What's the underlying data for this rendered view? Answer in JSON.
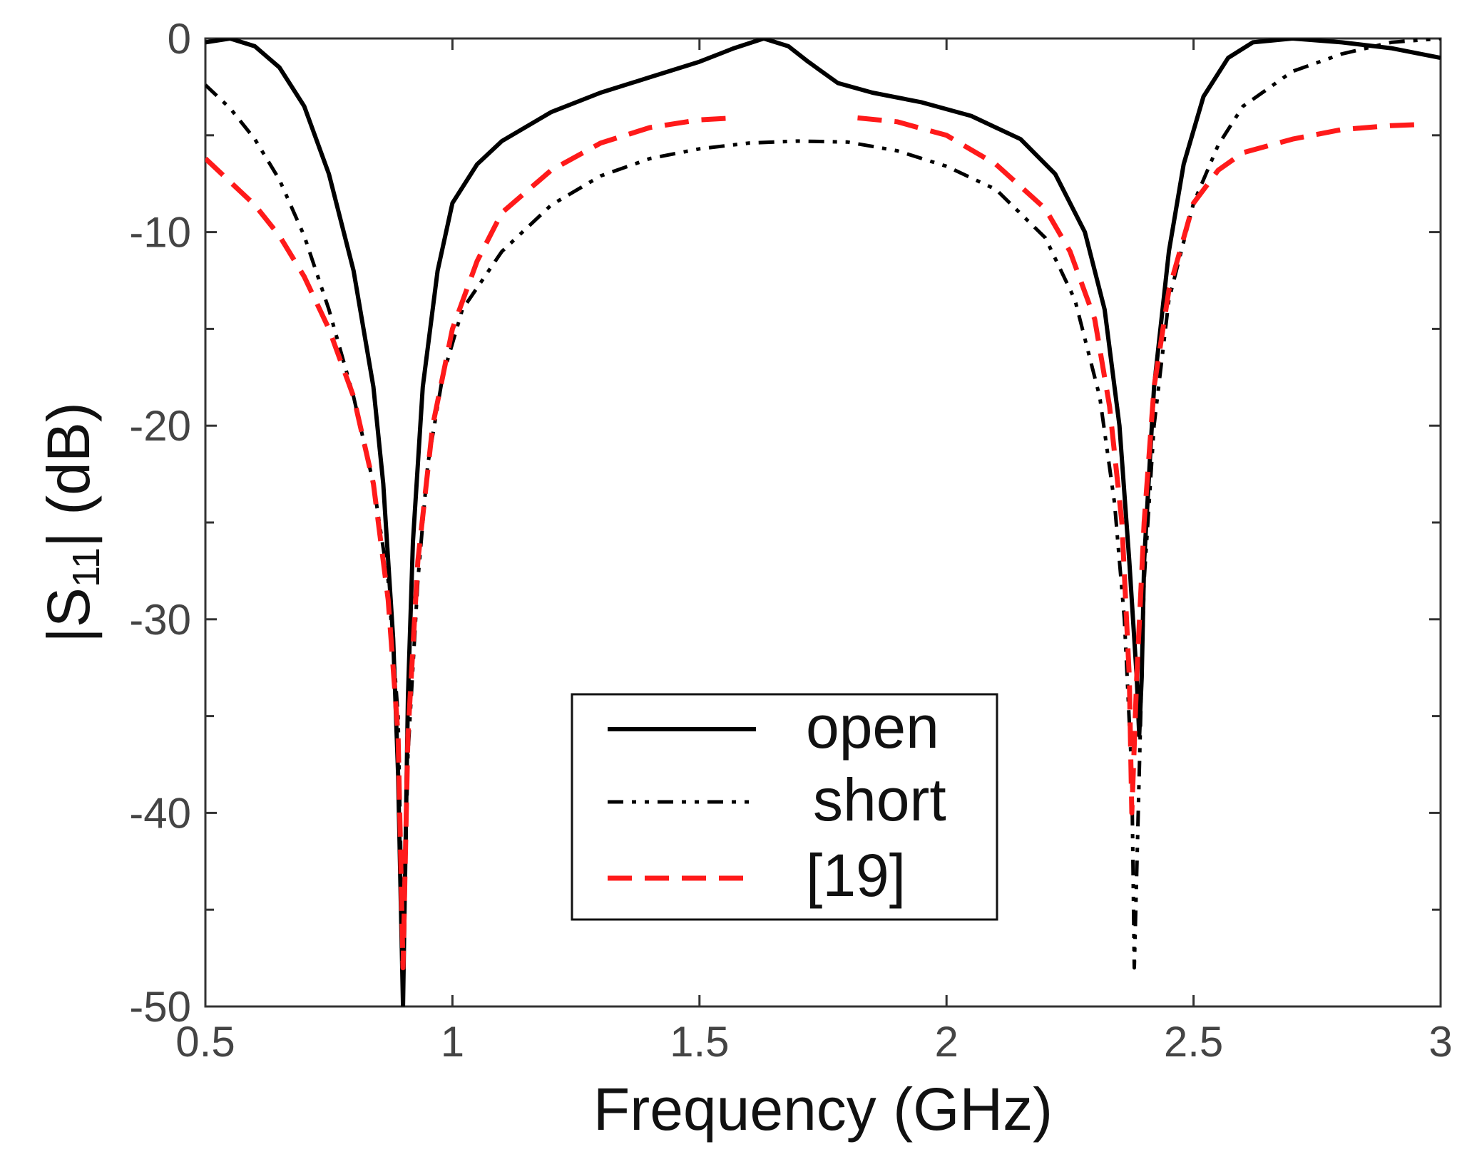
{
  "chart_data": {
    "type": "line",
    "xlabel": "Frequency  (GHz)",
    "ylabel": {
      "prefix": "|S",
      "sub": "11",
      "suffix": "|  (dB)"
    },
    "xlim": [
      0.5,
      3
    ],
    "ylim": [
      -50,
      0
    ],
    "xticks": [
      0.5,
      1,
      1.5,
      2,
      2.5,
      3
    ],
    "xtick_labels": [
      "0.5",
      "1",
      "1.5",
      "2",
      "2.5",
      "3"
    ],
    "yticks": [
      0,
      -10,
      -20,
      -30,
      -40,
      -50
    ],
    "ytick_labels": [
      "0",
      "-10",
      "-20",
      "-30",
      "-40",
      "-50"
    ],
    "yminor_ticks": [
      -5,
      -15,
      -25,
      -35,
      -45
    ],
    "legend_position": "bottom-center",
    "series": [
      {
        "name": "open",
        "color": "#000000",
        "dash": "solid",
        "points": [
          [
            0.5,
            -0.2
          ],
          [
            0.55,
            0.0
          ],
          [
            0.6,
            -0.4
          ],
          [
            0.65,
            -1.5
          ],
          [
            0.7,
            -3.5
          ],
          [
            0.75,
            -7.0
          ],
          [
            0.8,
            -12.0
          ],
          [
            0.84,
            -18.0
          ],
          [
            0.86,
            -23.0
          ],
          [
            0.88,
            -31.0
          ],
          [
            0.89,
            -38.0
          ],
          [
            0.9,
            -50.0
          ],
          [
            0.91,
            -34.0
          ],
          [
            0.92,
            -26.0
          ],
          [
            0.94,
            -18.0
          ],
          [
            0.97,
            -12.0
          ],
          [
            1.0,
            -8.5
          ],
          [
            1.05,
            -6.5
          ],
          [
            1.1,
            -5.3
          ],
          [
            1.2,
            -3.8
          ],
          [
            1.3,
            -2.8
          ],
          [
            1.4,
            -2.0
          ],
          [
            1.5,
            -1.2
          ],
          [
            1.57,
            -0.5
          ],
          [
            1.63,
            0.0
          ],
          [
            1.68,
            -0.4
          ],
          [
            1.72,
            -1.2
          ],
          [
            1.78,
            -2.3
          ],
          [
            1.85,
            -2.8
          ],
          [
            1.95,
            -3.3
          ],
          [
            2.05,
            -4.0
          ],
          [
            2.15,
            -5.2
          ],
          [
            2.22,
            -7.0
          ],
          [
            2.28,
            -10.0
          ],
          [
            2.32,
            -14.0
          ],
          [
            2.35,
            -20.0
          ],
          [
            2.37,
            -27.0
          ],
          [
            2.385,
            -33.0
          ],
          [
            2.39,
            -36.0
          ],
          [
            2.395,
            -33.0
          ],
          [
            2.4,
            -27.0
          ],
          [
            2.42,
            -18.0
          ],
          [
            2.45,
            -11.0
          ],
          [
            2.48,
            -6.5
          ],
          [
            2.52,
            -3.0
          ],
          [
            2.57,
            -1.0
          ],
          [
            2.62,
            -0.2
          ],
          [
            2.7,
            0.0
          ],
          [
            2.8,
            -0.2
          ],
          [
            2.9,
            -0.5
          ],
          [
            3.0,
            -1.0
          ]
        ]
      },
      {
        "name": "short",
        "color": "#000000",
        "dash": "dashdotdot",
        "points": [
          [
            0.5,
            -2.4
          ],
          [
            0.55,
            -3.6
          ],
          [
            0.6,
            -5.2
          ],
          [
            0.65,
            -7.3
          ],
          [
            0.7,
            -10.2
          ],
          [
            0.75,
            -14.0
          ],
          [
            0.8,
            -18.5
          ],
          [
            0.84,
            -23.0
          ],
          [
            0.87,
            -28.0
          ],
          [
            0.89,
            -35.0
          ],
          [
            0.9,
            -48.0
          ],
          [
            0.91,
            -37.0
          ],
          [
            0.93,
            -28.0
          ],
          [
            0.95,
            -22.0
          ],
          [
            0.98,
            -17.5
          ],
          [
            1.02,
            -14.0
          ],
          [
            1.1,
            -11.0
          ],
          [
            1.2,
            -8.6
          ],
          [
            1.3,
            -7.1
          ],
          [
            1.4,
            -6.2
          ],
          [
            1.5,
            -5.7
          ],
          [
            1.6,
            -5.4
          ],
          [
            1.7,
            -5.3
          ],
          [
            1.8,
            -5.35
          ],
          [
            1.9,
            -5.8
          ],
          [
            2.0,
            -6.6
          ],
          [
            2.1,
            -7.8
          ],
          [
            2.2,
            -10.3
          ],
          [
            2.26,
            -13.5
          ],
          [
            2.31,
            -18.5
          ],
          [
            2.34,
            -24.0
          ],
          [
            2.36,
            -30.0
          ],
          [
            2.375,
            -38.0
          ],
          [
            2.38,
            -48.0
          ],
          [
            2.39,
            -38.0
          ],
          [
            2.4,
            -28.0
          ],
          [
            2.42,
            -20.0
          ],
          [
            2.45,
            -13.5
          ],
          [
            2.5,
            -8.5
          ],
          [
            2.55,
            -5.5
          ],
          [
            2.6,
            -3.5
          ],
          [
            2.7,
            -1.7
          ],
          [
            2.8,
            -0.8
          ],
          [
            2.9,
            -0.2
          ],
          [
            3.0,
            0.0
          ]
        ]
      },
      {
        "name": "[19]",
        "color": "#ff1a1a",
        "dash": "dashed",
        "points": [
          [
            0.5,
            -6.2
          ],
          [
            0.55,
            -7.4
          ],
          [
            0.6,
            -8.6
          ],
          [
            0.65,
            -10.2
          ],
          [
            0.7,
            -12.3
          ],
          [
            0.75,
            -15.0
          ],
          [
            0.8,
            -18.5
          ],
          [
            0.84,
            -23.0
          ],
          [
            0.87,
            -29.0
          ],
          [
            0.89,
            -36.0
          ],
          [
            0.9,
            -48.0
          ],
          [
            0.91,
            -36.0
          ],
          [
            0.93,
            -27.0
          ],
          [
            0.96,
            -20.0
          ],
          [
            1.0,
            -15.0
          ],
          [
            1.05,
            -11.5
          ],
          [
            1.1,
            -9.0
          ],
          [
            1.2,
            -6.8
          ],
          [
            1.3,
            -5.4
          ],
          [
            1.4,
            -4.6
          ],
          [
            1.5,
            -4.2
          ],
          [
            1.57,
            -4.1
          ],
          [
            1.82,
            -4.1
          ],
          [
            1.9,
            -4.3
          ],
          [
            2.0,
            -5.0
          ],
          [
            2.1,
            -6.5
          ],
          [
            2.2,
            -8.8
          ],
          [
            2.25,
            -11.0
          ],
          [
            2.3,
            -14.5
          ],
          [
            2.33,
            -19.0
          ],
          [
            2.355,
            -25.0
          ],
          [
            2.37,
            -33.0
          ],
          [
            2.375,
            -40.0
          ],
          [
            2.385,
            -33.0
          ],
          [
            2.4,
            -25.0
          ],
          [
            2.42,
            -18.0
          ],
          [
            2.45,
            -13.0
          ],
          [
            2.5,
            -8.5
          ],
          [
            2.55,
            -6.8
          ],
          [
            2.6,
            -5.9
          ],
          [
            2.7,
            -5.2
          ],
          [
            2.8,
            -4.7
          ],
          [
            2.9,
            -4.5
          ],
          [
            2.95,
            -4.45
          ]
        ]
      }
    ]
  }
}
